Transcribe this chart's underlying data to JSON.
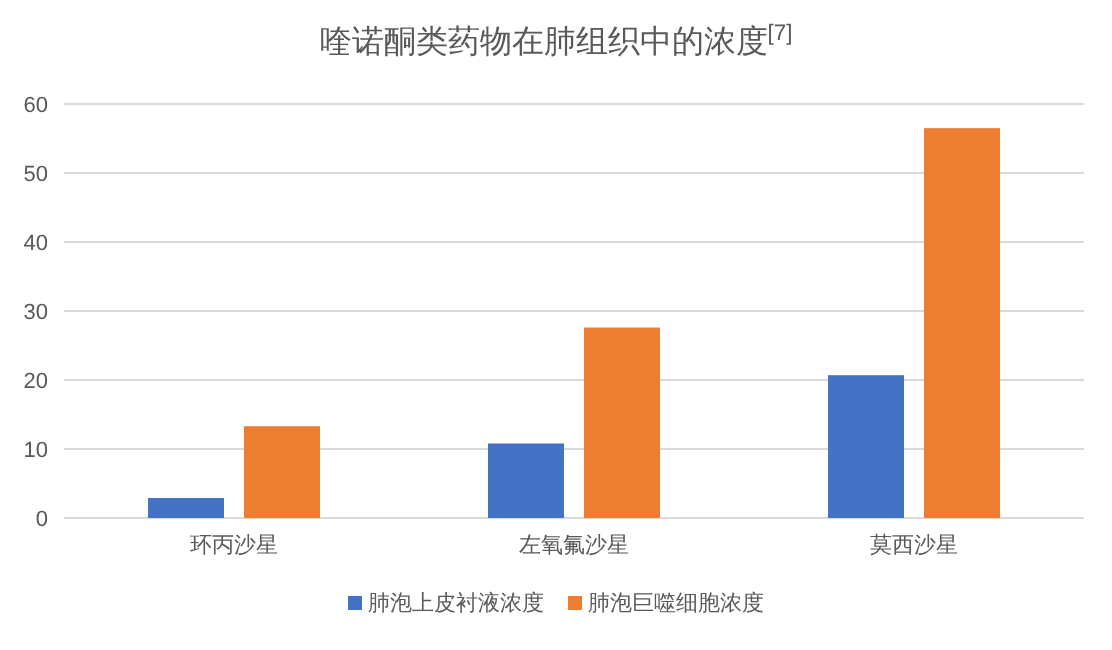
{
  "chart_data": {
    "type": "bar",
    "title": "喹诺酮类药物在肺组织中的浓度$^{[7]}$",
    "categories": [
      "环丙沙星",
      "左氧氟沙星",
      "莫西沙星"
    ],
    "series": [
      {
        "name": "肺泡上皮衬液浓度",
        "color": "#4472c4",
        "values": [
          2.9,
          10.8,
          20.7
        ]
      },
      {
        "name": "肺泡巨噬细胞浓度",
        "color": "#ed7d31",
        "values": [
          13.3,
          27.6,
          56.5
        ]
      }
    ],
    "ylim": [
      0,
      60
    ],
    "yticks": [
      0,
      10,
      20,
      30,
      40,
      50,
      60
    ],
    "grid": "y",
    "legend": "bottom"
  }
}
